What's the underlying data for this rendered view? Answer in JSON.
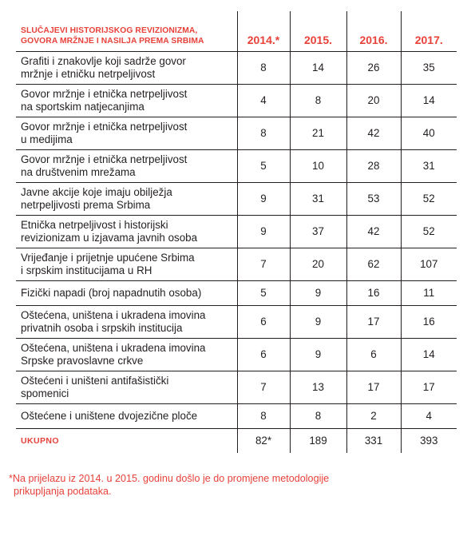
{
  "table": {
    "header": {
      "title_line1": "SLUČAJEVI HISTORIJSKOG REVIZIONIZMA,",
      "title_line2": "GOVORA MRŽNJE I NASILJA PREMA SRBIMA",
      "years": [
        "2014.*",
        "2015.",
        "2016.",
        "2017."
      ]
    },
    "rows": [
      {
        "line1": "Grafiti i znakovlje koji sadrže govor",
        "line2": "mržnje i etničku netrpeljivost",
        "values": [
          "8",
          "14",
          "26",
          "35"
        ]
      },
      {
        "line1": "Govor mržnje i etnička netrpeljivost",
        "line2": "na sportskim natjecanjima",
        "values": [
          "4",
          "8",
          "20",
          "14"
        ]
      },
      {
        "line1": "Govor mržnje i etnička netrpeljivost",
        "line2": "u medijima",
        "values": [
          "8",
          "21",
          "42",
          "40"
        ]
      },
      {
        "line1": "Govor mržnje i etnička netrpeljivost",
        "line2": "na društvenim mrežama",
        "values": [
          "5",
          "10",
          "28",
          "31"
        ]
      },
      {
        "line1": "Javne akcije koje imaju obilježja",
        "line2": "netrpeljivosti prema Srbima",
        "values": [
          "9",
          "31",
          "53",
          "52"
        ]
      },
      {
        "line1": "Etnička netrpeljivost i historijski",
        "line2": "revizionizam u izjavama javnih osoba",
        "values": [
          "9",
          "37",
          "42",
          "52"
        ]
      },
      {
        "line1": "Vrijeđanje i prijetnje upućene Srbima",
        "line2": "i srpskim institucijama u RH",
        "values": [
          "7",
          "20",
          "62",
          "107"
        ]
      },
      {
        "line1": "Fizički napadi (broj napadnutih osoba)",
        "values": [
          "5",
          "9",
          "16",
          "11"
        ]
      },
      {
        "line1": "Oštećena, uništena i ukradena imovina",
        "line2": "privatnih osoba i srpskih institucija",
        "values": [
          "6",
          "9",
          "17",
          "16"
        ]
      },
      {
        "line1": "Oštećena, uništena i ukradena imovina",
        "line2": "Srpske pravoslavne crkve",
        "values": [
          "6",
          "9",
          "6",
          "14"
        ]
      },
      {
        "line1": "Oštećeni i uništeni antifašistički",
        "line2": "spomenici",
        "values": [
          "7",
          "13",
          "17",
          "17"
        ]
      },
      {
        "line1": "Oštećene i uništene dvojezične ploče",
        "values": [
          "8",
          "8",
          "2",
          "4"
        ]
      }
    ],
    "total": {
      "label": "UKUPNO",
      "values": [
        "82*",
        "189",
        "331",
        "393"
      ]
    }
  },
  "footnote": {
    "line1": "*Na prijelazu iz 2014. u 2015. godinu došlo je do promjene metodologije",
    "line2": "prikupljanja podataka."
  }
}
